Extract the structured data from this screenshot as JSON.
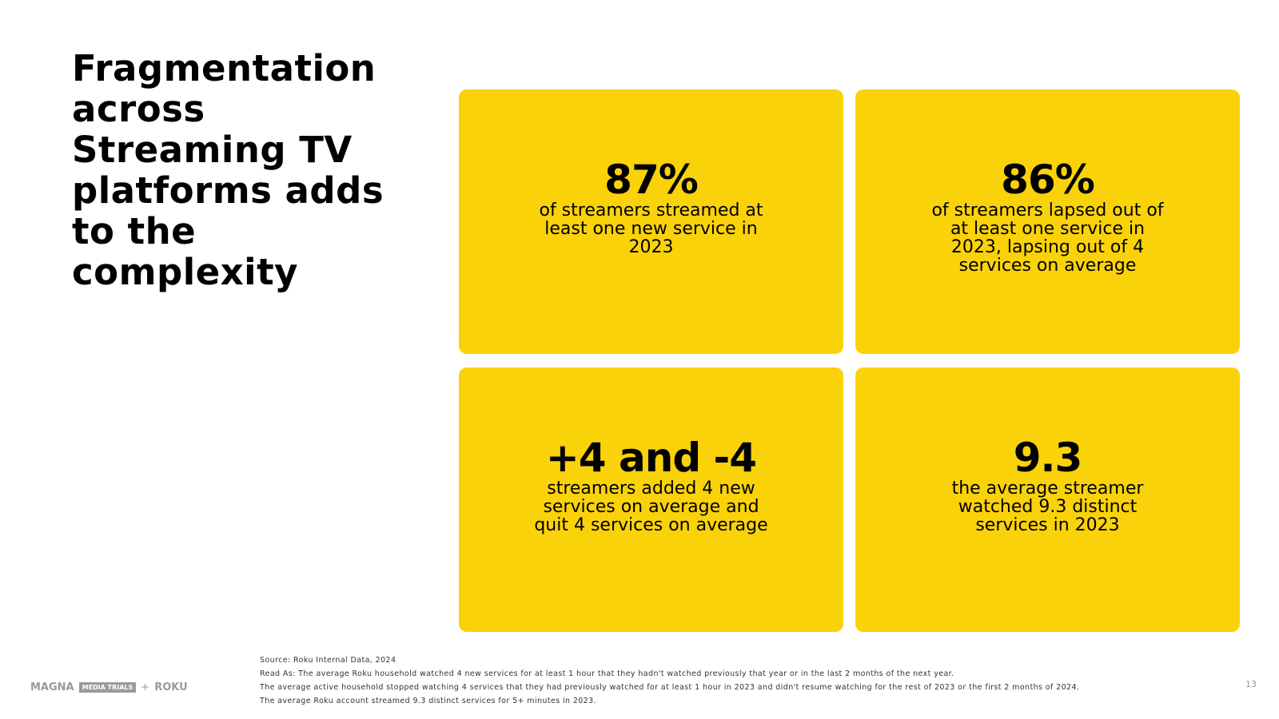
{
  "title": "Fragmentation across Streaming TV platforms adds to the complexity",
  "cards": [
    {
      "stat": "87%",
      "description": "of streamers streamed at least one new service in 2023"
    },
    {
      "stat": "86%",
      "description": "of streamers lapsed out of at least one service in 2023, lapsing out of 4 services on average"
    },
    {
      "stat": "+4 and -4",
      "description": "streamers added 4 new services on average and quit 4 services on average"
    },
    {
      "stat": "9.3",
      "description": "the average streamer watched 9.3 distinct services in 2023"
    }
  ],
  "footer": {
    "logos": {
      "magna": "MAGNA",
      "media_trials": "MEDIA TRIALS",
      "plus": "+",
      "roku": "ROKU"
    },
    "notes": [
      "Source: Roku Internal Data, 2024",
      "Read As: The average Roku household watched 4 new services for at least 1 hour that they hadn't watched previously that year or in the last 2 months of the next year.",
      "The average active household stopped watching 4 services that they had previously watched for at least 1 hour in 2023 and didn't resume watching for the rest of 2023 or the first 2 months of 2024.",
      "The average Roku account streamed 9.3 distinct services for 5+ minutes in 2023."
    ],
    "page_number": "13"
  },
  "colors": {
    "card_background": "#fad20a",
    "text": "#000000",
    "muted": "#9a9a9a"
  }
}
